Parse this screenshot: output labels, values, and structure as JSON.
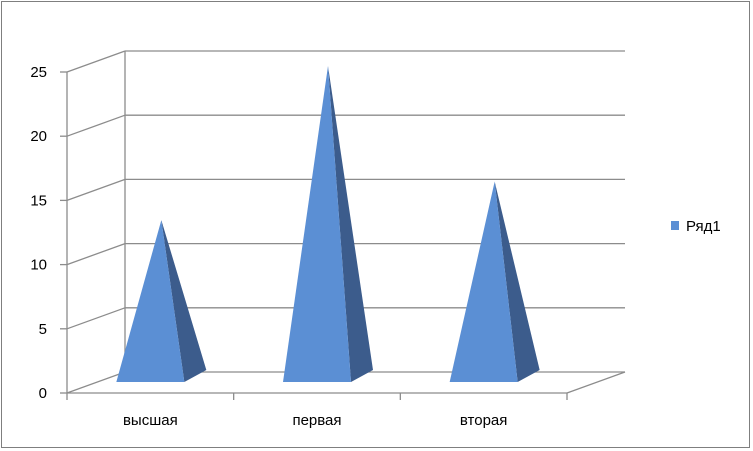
{
  "chart_data": {
    "type": "bar",
    "style": "3d-pyramid",
    "title": "",
    "xlabel": "",
    "ylabel": "",
    "categories": [
      "высшая",
      "первая",
      "вторая"
    ],
    "series": [
      {
        "name": "Ряд1",
        "values": [
          13,
          25,
          16
        ]
      }
    ],
    "ylim": [
      0,
      25
    ],
    "yticks": [
      0,
      5,
      10,
      15,
      20,
      25
    ],
    "grid": true,
    "legend": "right",
    "colors": {
      "front": "#5b8fd4",
      "side": "#3c5c8c",
      "grid": "#8c8c8c",
      "axis": "#8c8c8c"
    }
  }
}
